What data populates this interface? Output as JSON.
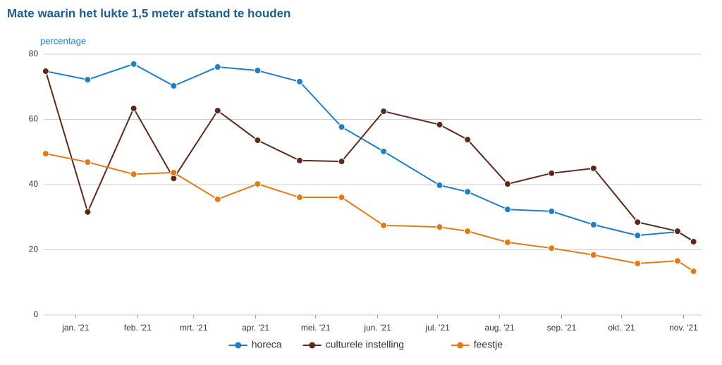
{
  "chart_data": {
    "type": "line",
    "title": "Mate waarin het lukte 1,5 meter afstand te houden",
    "y_label": "percentage",
    "x": [
      -15,
      6,
      29,
      49,
      71,
      91,
      112,
      133,
      154,
      182,
      196,
      216,
      238,
      259,
      281,
      301,
      309
    ],
    "series": [
      {
        "name": "horeca",
        "color": "#1f7fc0",
        "values": [
          74.8,
          72.2,
          77,
          70.3,
          76.1,
          75,
          71.6,
          57.7,
          50.2,
          39.8,
          37.8,
          32.4,
          31.8,
          27.7,
          24.4,
          25.5,
          22.7
        ]
      },
      {
        "name": "culturele instelling",
        "color": "#5c2a1c",
        "values": [
          74.8,
          31.6,
          63.4,
          41.9,
          62.7,
          53.6,
          47.4,
          47.1,
          62.5,
          58.4,
          53.8,
          40.2,
          43.5,
          45,
          28.5,
          25.7,
          22.5
        ]
      },
      {
        "name": "feestje",
        "color": "#e07b1a",
        "values": [
          49.5,
          46.9,
          43.2,
          43.7,
          35.5,
          40.2,
          36.1,
          36.1,
          27.5,
          27,
          25.7,
          22.3,
          20.5,
          18.4,
          15.8,
          16.6,
          13.4
        ]
      }
    ],
    "xlim": [
      -16,
      313
    ],
    "xticks": [
      {
        "value": 0,
        "label": "jan. '21"
      },
      {
        "value": 31,
        "label": "feb. '21"
      },
      {
        "value": 59,
        "label": "mrt. '21"
      },
      {
        "value": 90,
        "label": "apr. '21"
      },
      {
        "value": 120,
        "label": "mei. '21"
      },
      {
        "value": 151,
        "label": "jun. '21"
      },
      {
        "value": 181,
        "label": "jul. '21"
      },
      {
        "value": 212,
        "label": "aug. '21"
      },
      {
        "value": 243,
        "label": "sep. '21"
      },
      {
        "value": 273,
        "label": "okt. '21"
      },
      {
        "value": 304,
        "label": "nov. '21"
      }
    ],
    "ylim": [
      0,
      80
    ],
    "yticks": [
      0,
      20,
      40,
      60,
      80
    ],
    "grid": true,
    "legend": "bottom"
  }
}
